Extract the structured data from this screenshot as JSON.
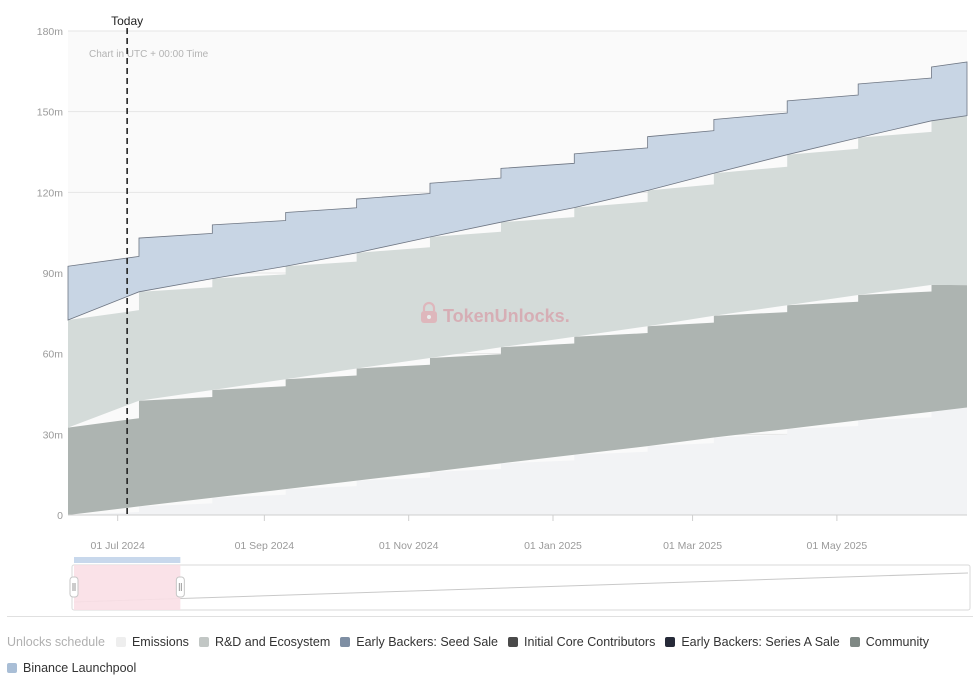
{
  "chart_data": {
    "type": "area",
    "stacked": true,
    "step": true,
    "watermark": "TokenUnlocks.",
    "note": "Chart in UTC + 00:00 Time",
    "today_label": "Today",
    "today_date": "2024-07-05",
    "x_range": [
      "2024-06-10",
      "2025-06-25"
    ],
    "ylim": [
      0,
      180
    ],
    "y_ticks": [
      {
        "value": 0,
        "label": "0"
      },
      {
        "value": 30,
        "label": "30m"
      },
      {
        "value": 60,
        "label": "60m"
      },
      {
        "value": 90,
        "label": "90m"
      },
      {
        "value": 120,
        "label": "120m"
      },
      {
        "value": 150,
        "label": "150m"
      },
      {
        "value": 180,
        "label": "180m"
      }
    ],
    "x_ticks": [
      {
        "date": "2024-07-01",
        "label": "01 Jul 2024"
      },
      {
        "date": "2024-09-01",
        "label": "01 Sep 2024"
      },
      {
        "date": "2024-11-01",
        "label": "01 Nov 2024"
      },
      {
        "date": "2025-01-01",
        "label": "01 Jan 2025"
      },
      {
        "date": "2025-03-01",
        "label": "01 Mar 2025"
      },
      {
        "date": "2025-05-01",
        "label": "01 May 2025"
      }
    ],
    "x": [
      "2024-06-10",
      "2024-07-10",
      "2024-08-10",
      "2024-09-10",
      "2024-10-10",
      "2024-11-10",
      "2024-12-10",
      "2025-01-10",
      "2025-02-10",
      "2025-03-10",
      "2025-04-10",
      "2025-05-10",
      "2025-06-10",
      "2025-06-25"
    ],
    "series": [
      {
        "name": "Emissions",
        "color": "#f2f3f5",
        "values": [
          0,
          3.2,
          6.4,
          9.6,
          12.8,
          16,
          19.2,
          22.4,
          25.6,
          28.8,
          32,
          35.2,
          38.4,
          40
        ]
      },
      {
        "name": "Community",
        "color": "#adb4b1",
        "values": [
          32.5,
          39.3,
          40.1,
          40.9,
          41.7,
          42.4,
          43.2,
          43.9,
          44.6,
          45.3,
          46,
          46.6,
          47.2,
          45.5
        ]
      },
      {
        "name": "R&D and Ecosystem",
        "color": "#d4dbd9",
        "values": [
          40,
          40.5,
          41.4,
          42,
          43,
          45,
          46.5,
          48,
          50.5,
          53,
          56,
          58.5,
          61,
          63
        ]
      },
      {
        "name": "Binance Launchpool",
        "color": "#c8d5e4",
        "values": [
          20,
          20,
          20,
          20,
          20,
          20,
          20,
          20,
          20,
          20,
          20,
          20,
          20,
          20
        ]
      }
    ],
    "legend": [
      {
        "name": "Emissions",
        "color": "#eeeeee"
      },
      {
        "name": "R&D and Ecosystem",
        "color": "#c2c7c5"
      },
      {
        "name": "Early Backers: Seed Sale",
        "color": "#7e8ea3"
      },
      {
        "name": "Initial Core Contributors",
        "color": "#4a4a4a"
      },
      {
        "name": "Early Backers: Series A Sale",
        "color": "#262a38"
      },
      {
        "name": "Community",
        "color": "#7f8884"
      },
      {
        "name": "Binance Launchpool",
        "color": "#a9bed6"
      }
    ],
    "legend_title": "Unlocks schedule",
    "navigator": {
      "window_start": "2024-06-10",
      "window_end": "2024-07-25"
    }
  }
}
